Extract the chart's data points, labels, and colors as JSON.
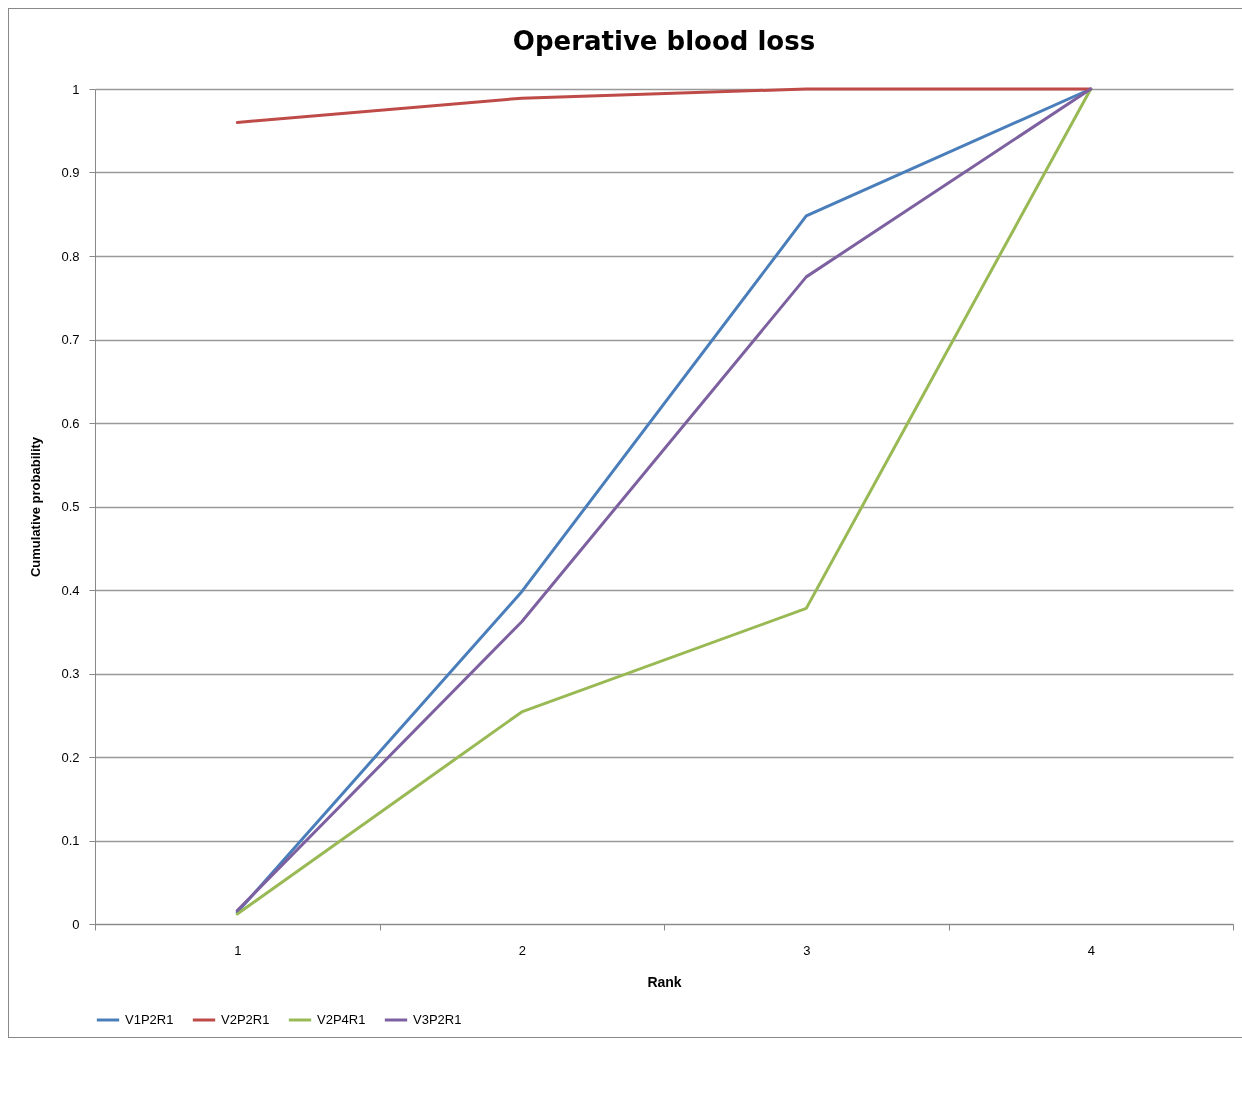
{
  "chart_data": {
    "type": "line",
    "title": "Operative blood loss",
    "xlabel": "Rank",
    "ylabel": "Cumulative probability",
    "categories": [
      "1",
      "2",
      "3",
      "4"
    ],
    "series": [
      {
        "name": "V1P2R1",
        "color": "#4a7ebb",
        "values": [
          0.014,
          0.398,
          0.848,
          1
        ]
      },
      {
        "name": "V2P2R1",
        "color": "#be4b48",
        "values": [
          0.96,
          0.989,
          1,
          1
        ]
      },
      {
        "name": "V2P4R1",
        "color": "#98b954",
        "values": [
          0.012,
          0.254,
          0.378,
          1
        ]
      },
      {
        "name": "V3P2R1",
        "color": "#7d60a0",
        "values": [
          0.016,
          0.362,
          0.775,
          1
        ]
      }
    ],
    "ylim": [
      0,
      1
    ],
    "yticks": [
      0,
      0.1,
      0.2,
      0.3,
      0.4,
      0.5,
      0.6,
      0.7,
      0.8,
      0.9,
      1
    ],
    "grid": "y",
    "legend": "bottom",
    "marker": "none",
    "line_style": "solid"
  }
}
